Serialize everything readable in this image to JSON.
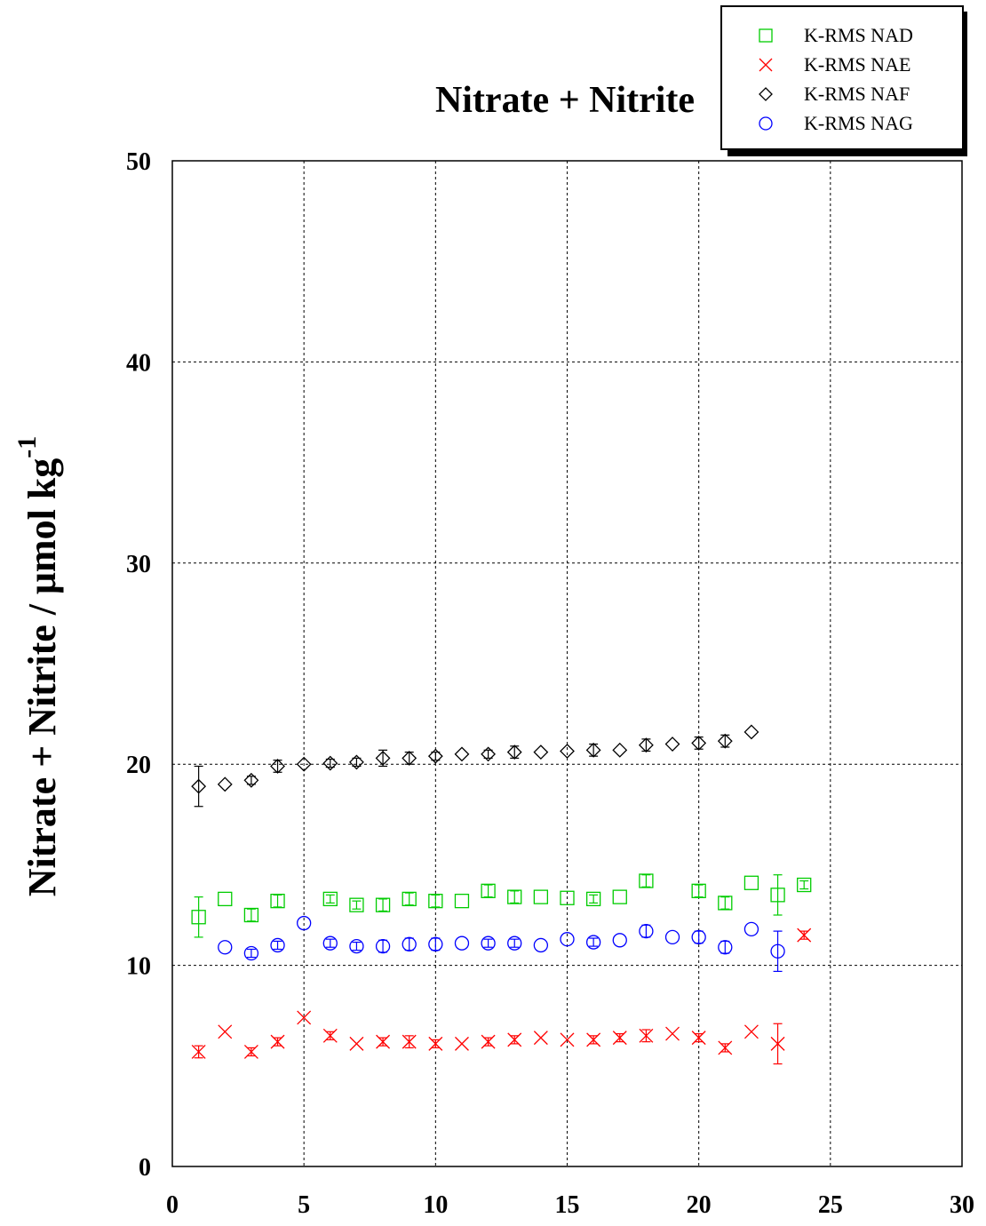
{
  "chart_data": {
    "type": "scatter",
    "title": "Nitrate + Nitrite",
    "ylabel": "Nitrate + Nitrite / μmol kg",
    "ylabel_superscript": "-1",
    "xlabel": "",
    "xlim": [
      0,
      30
    ],
    "ylim": [
      0,
      50
    ],
    "x_ticks": [
      0,
      5,
      10,
      15,
      20,
      25,
      30
    ],
    "y_ticks": [
      0,
      10,
      20,
      30,
      40,
      50
    ],
    "grid": true,
    "legend_placement": "top-right",
    "series": [
      {
        "name": "K-RMS NAD",
        "marker": "square",
        "color": "#00cc00",
        "points": [
          {
            "x": 1,
            "y": 12.4,
            "err": 1.0
          },
          {
            "x": 2,
            "y": 13.3,
            "err": 0
          },
          {
            "x": 3,
            "y": 12.5,
            "err": 0.3
          },
          {
            "x": 4,
            "y": 13.2,
            "err": 0.3
          },
          {
            "x": 6,
            "y": 13.3,
            "err": 0.2
          },
          {
            "x": 7,
            "y": 13.0,
            "err": 0.2
          },
          {
            "x": 8,
            "y": 13.0,
            "err": 0.3
          },
          {
            "x": 9,
            "y": 13.3,
            "err": 0.3
          },
          {
            "x": 10,
            "y": 13.2,
            "err": 0.3
          },
          {
            "x": 11,
            "y": 13.2,
            "err": 0
          },
          {
            "x": 12,
            "y": 13.7,
            "err": 0.3
          },
          {
            "x": 13,
            "y": 13.4,
            "err": 0.3
          },
          {
            "x": 14,
            "y": 13.4,
            "err": 0
          },
          {
            "x": 15,
            "y": 13.35,
            "err": 0
          },
          {
            "x": 16,
            "y": 13.3,
            "err": 0.2
          },
          {
            "x": 17,
            "y": 13.4,
            "err": 0
          },
          {
            "x": 18,
            "y": 14.2,
            "err": 0.3
          },
          {
            "x": 20,
            "y": 13.7,
            "err": 0.3
          },
          {
            "x": 21,
            "y": 13.1,
            "err": 0.3
          },
          {
            "x": 22,
            "y": 14.1,
            "err": 0
          },
          {
            "x": 23,
            "y": 13.5,
            "err": 1.0
          },
          {
            "x": 24,
            "y": 14.0,
            "err": 0.2
          }
        ]
      },
      {
        "name": "K-RMS NAE",
        "marker": "cross",
        "color": "#ff0000",
        "points": [
          {
            "x": 1,
            "y": 5.7,
            "err": 0.3
          },
          {
            "x": 2,
            "y": 6.7,
            "err": 0
          },
          {
            "x": 3,
            "y": 5.7,
            "err": 0.2
          },
          {
            "x": 4,
            "y": 6.2,
            "err": 0.2
          },
          {
            "x": 5,
            "y": 7.4,
            "err": 0
          },
          {
            "x": 6,
            "y": 6.5,
            "err": 0.2
          },
          {
            "x": 7,
            "y": 6.1,
            "err": 0
          },
          {
            "x": 8,
            "y": 6.2,
            "err": 0.2
          },
          {
            "x": 9,
            "y": 6.2,
            "err": 0.3
          },
          {
            "x": 10,
            "y": 6.1,
            "err": 0.2
          },
          {
            "x": 11,
            "y": 6.1,
            "err": 0
          },
          {
            "x": 12,
            "y": 6.2,
            "err": 0.2
          },
          {
            "x": 13,
            "y": 6.3,
            "err": 0.2
          },
          {
            "x": 14,
            "y": 6.4,
            "err": 0
          },
          {
            "x": 15,
            "y": 6.3,
            "err": 0
          },
          {
            "x": 16,
            "y": 6.3,
            "err": 0.2
          },
          {
            "x": 17,
            "y": 6.4,
            "err": 0.2
          },
          {
            "x": 18,
            "y": 6.5,
            "err": 0.3
          },
          {
            "x": 19,
            "y": 6.6,
            "err": 0
          },
          {
            "x": 20,
            "y": 6.4,
            "err": 0.2
          },
          {
            "x": 21,
            "y": 5.9,
            "err": 0.2
          },
          {
            "x": 22,
            "y": 6.7,
            "err": 0
          },
          {
            "x": 23,
            "y": 6.1,
            "err": 1.0
          },
          {
            "x": 24,
            "y": 11.5,
            "err": 0.2
          }
        ]
      },
      {
        "name": "K-RMS NAF",
        "marker": "diamond",
        "color": "#000000",
        "points": [
          {
            "x": 1,
            "y": 18.9,
            "err": 1.0
          },
          {
            "x": 2,
            "y": 19.0,
            "err": 0
          },
          {
            "x": 3,
            "y": 19.2,
            "err": 0.2
          },
          {
            "x": 4,
            "y": 19.9,
            "err": 0.3
          },
          {
            "x": 5,
            "y": 20.0,
            "err": 0
          },
          {
            "x": 6,
            "y": 20.05,
            "err": 0.2
          },
          {
            "x": 7,
            "y": 20.1,
            "err": 0.2
          },
          {
            "x": 8,
            "y": 20.3,
            "err": 0.4
          },
          {
            "x": 9,
            "y": 20.3,
            "err": 0.3
          },
          {
            "x": 10,
            "y": 20.4,
            "err": 0.2
          },
          {
            "x": 11,
            "y": 20.5,
            "err": 0
          },
          {
            "x": 12,
            "y": 20.5,
            "err": 0.2
          },
          {
            "x": 13,
            "y": 20.6,
            "err": 0.3
          },
          {
            "x": 14,
            "y": 20.6,
            "err": 0
          },
          {
            "x": 15,
            "y": 20.65,
            "err": 0
          },
          {
            "x": 16,
            "y": 20.7,
            "err": 0.3
          },
          {
            "x": 17,
            "y": 20.7,
            "err": 0
          },
          {
            "x": 18,
            "y": 20.95,
            "err": 0.3
          },
          {
            "x": 19,
            "y": 21.0,
            "err": 0
          },
          {
            "x": 20,
            "y": 21.05,
            "err": 0.3
          },
          {
            "x": 21,
            "y": 21.15,
            "err": 0.3
          },
          {
            "x": 22,
            "y": 21.6,
            "err": 0
          }
        ]
      },
      {
        "name": "K-RMS NAG",
        "marker": "circle",
        "color": "#0000ff",
        "points": [
          {
            "x": 2,
            "y": 10.9,
            "err": 0
          },
          {
            "x": 3,
            "y": 10.6,
            "err": 0.2
          },
          {
            "x": 4,
            "y": 11.0,
            "err": 0.2
          },
          {
            "x": 5,
            "y": 12.1,
            "err": 0
          },
          {
            "x": 6,
            "y": 11.1,
            "err": 0.2
          },
          {
            "x": 7,
            "y": 10.95,
            "err": 0.2
          },
          {
            "x": 8,
            "y": 10.95,
            "err": 0.3
          },
          {
            "x": 9,
            "y": 11.05,
            "err": 0.3
          },
          {
            "x": 10,
            "y": 11.05,
            "err": 0.3
          },
          {
            "x": 11,
            "y": 11.1,
            "err": 0
          },
          {
            "x": 12,
            "y": 11.1,
            "err": 0.2
          },
          {
            "x": 13,
            "y": 11.1,
            "err": 0.2
          },
          {
            "x": 14,
            "y": 11.0,
            "err": 0
          },
          {
            "x": 15,
            "y": 11.3,
            "err": 0
          },
          {
            "x": 16,
            "y": 11.15,
            "err": 0.2
          },
          {
            "x": 17,
            "y": 11.25,
            "err": 0
          },
          {
            "x": 18,
            "y": 11.7,
            "err": 0.3
          },
          {
            "x": 19,
            "y": 11.4,
            "err": 0
          },
          {
            "x": 20,
            "y": 11.4,
            "err": 0.3
          },
          {
            "x": 21,
            "y": 10.9,
            "err": 0.3
          },
          {
            "x": 22,
            "y": 11.8,
            "err": 0
          },
          {
            "x": 23,
            "y": 10.7,
            "err": 1.0
          }
        ]
      }
    ]
  }
}
